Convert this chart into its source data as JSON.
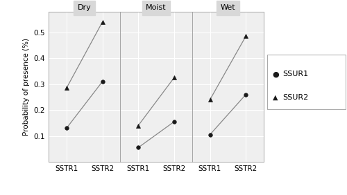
{
  "panels": [
    "Dry",
    "Moist",
    "Wet"
  ],
  "x_labels": [
    "SSTR1",
    "SSTR2"
  ],
  "series": [
    {
      "name": "SSUR1",
      "marker": "o",
      "values": {
        "Dry": [
          0.13,
          0.31
        ],
        "Moist": [
          0.055,
          0.155
        ],
        "Wet": [
          0.105,
          0.26
        ]
      }
    },
    {
      "name": "SSUR2",
      "marker": "^",
      "values": {
        "Dry": [
          0.285,
          0.54
        ],
        "Moist": [
          0.14,
          0.325
        ],
        "Wet": [
          0.24,
          0.485
        ]
      }
    }
  ],
  "ylabel": "Probability of presence (%)",
  "ylim": [
    0.0,
    0.58
  ],
  "yticks": [
    0.1,
    0.2,
    0.3,
    0.4,
    0.5
  ],
  "line_color": "#888888",
  "marker_color": "#1a1a1a",
  "background_color": "#efefef",
  "panel_header_color": "#d8d8d8",
  "grid_color": "#ffffff",
  "fontsize_title": 8,
  "fontsize_axis": 7.5,
  "fontsize_tick": 7.5,
  "fontsize_legend": 8
}
